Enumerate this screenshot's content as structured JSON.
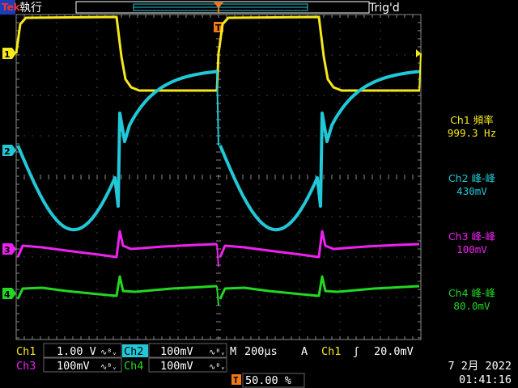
{
  "header": {
    "brand": "Tek",
    "run_state": "執行",
    "trig_state": "Trig'd"
  },
  "colors": {
    "ch1": "#f6e81a",
    "ch2": "#22c8d8",
    "ch3": "#ee22ee",
    "ch4": "#22d822",
    "trigger": "#f07a1a",
    "grid": "#8a8a8a",
    "background": "#000000"
  },
  "channel_markers": {
    "ch1": "1",
    "ch2": "2",
    "ch3": "3",
    "ch4": "4",
    "trigger": "T"
  },
  "measurements": [
    {
      "label": "Ch1 頻率",
      "value": "999.3 Hz"
    },
    {
      "label": "Ch2 峰-峰",
      "value": "430mV"
    },
    {
      "label": "Ch3 峰-峰",
      "value": "100mV"
    },
    {
      "label": "Ch4 峰-峰",
      "value": "80.0mV"
    }
  ],
  "settings": {
    "ch1_label": "Ch1",
    "ch1_scale": "1.00 V",
    "ch2_label": "Ch2",
    "ch2_scale": "100mV",
    "ch3_label": "Ch3",
    "ch3_scale": "100mV",
    "ch4_label": "Ch4",
    "ch4_scale": "100mV",
    "bw_symbol": "∿ᴮᵥ",
    "timebase_prefix": "M",
    "timebase": "200µs",
    "trigger_mode": "A",
    "trigger_source": "Ch1",
    "trigger_slope": "ʃ",
    "trigger_level": "20.0mV",
    "trigger_position": "50.00 %"
  },
  "datetime": {
    "date": "7 2月  2022",
    "time": "01:41:16"
  }
}
